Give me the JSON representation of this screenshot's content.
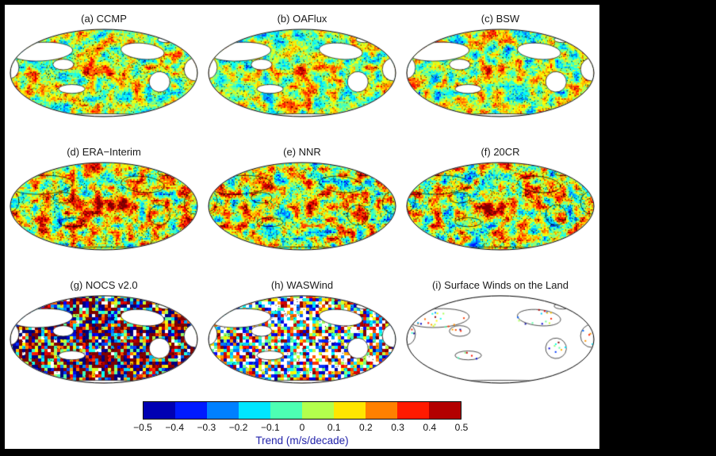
{
  "chart_data": {
    "type": "heatmap",
    "subtype": "global_trend_map_grid",
    "projection": "robinson",
    "grid": {
      "rows": 3,
      "cols": 3
    },
    "panels": [
      {
        "id": "a",
        "label": "(a) CCMP",
        "coverage": "ocean"
      },
      {
        "id": "b",
        "label": "(b) OAFlux",
        "coverage": "ocean"
      },
      {
        "id": "c",
        "label": "(c) BSW",
        "coverage": "ocean"
      },
      {
        "id": "d",
        "label": "(d) ERA−Interim",
        "coverage": "global"
      },
      {
        "id": "e",
        "label": "(e) NNR",
        "coverage": "global"
      },
      {
        "id": "f",
        "label": "(f) 20CR",
        "coverage": "global"
      },
      {
        "id": "g",
        "label": "(g) NOCS v2.0",
        "coverage": "ocean"
      },
      {
        "id": "h",
        "label": "(h) WASWind",
        "coverage": "ocean"
      },
      {
        "id": "i",
        "label": "(i) Surface Winds on the Land",
        "coverage": "land_stations"
      }
    ],
    "colorbar": {
      "label": "Trend (m/s/decade)",
      "label_color": "#2222aa",
      "range": [
        -0.5,
        0.5
      ],
      "tick_labels": [
        "−0.5",
        "−0.4",
        "−0.3",
        "−0.2",
        "−0.1",
        "0",
        "0.1",
        "0.2",
        "0.3",
        "0.4",
        "0.5"
      ],
      "colormap": "jet",
      "segments": 10,
      "colormap_stops": [
        "#000080",
        "#0000ff",
        "#0080ff",
        "#00ffff",
        "#80ff80",
        "#ffff00",
        "#ff8000",
        "#ff0000",
        "#800000"
      ]
    }
  }
}
